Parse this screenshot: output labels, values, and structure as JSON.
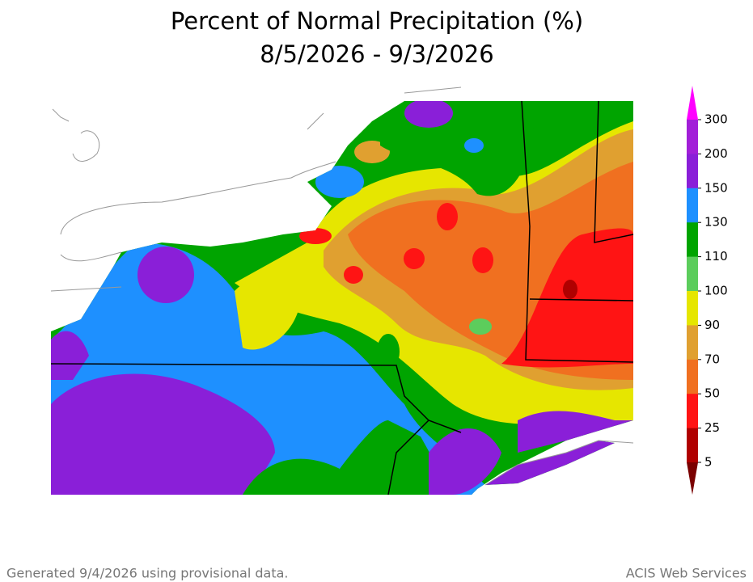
{
  "title": [
    "Percent of Normal Precipitation (%)",
    "8/5/2026 - 9/3/2026"
  ],
  "legend": {
    "levels": [
      300,
      200,
      150,
      130,
      110,
      100,
      90,
      70,
      50,
      25,
      5
    ],
    "colors": [
      "#a21fd8",
      "#8a1fd8",
      "#1e90ff",
      "#00a400",
      "#5ccd5c",
      "#e6e600",
      "#e0a030",
      "#f07020",
      "#ff1414",
      "#b00000"
    ],
    "top_color": "#ff00ff",
    "bottom_color": "#7a0000"
  },
  "footer": {
    "left": "Generated 9/4/2026  using provisional data.",
    "right": "ACIS Web Services"
  }
}
